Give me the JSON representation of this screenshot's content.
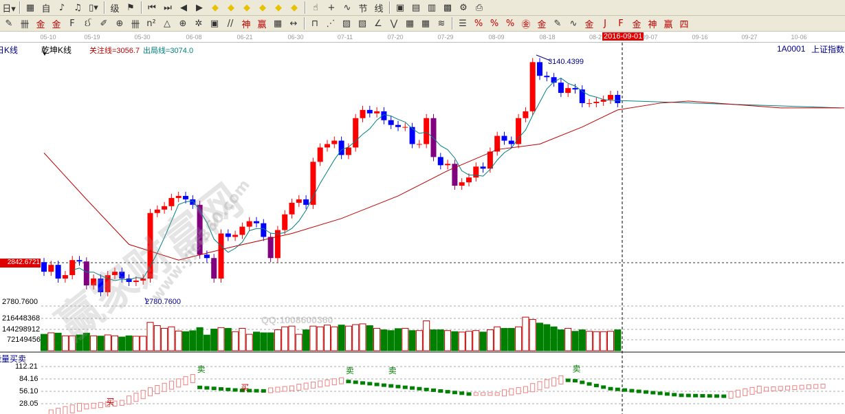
{
  "toolbar1": [
    {
      "name": "period-dropdown",
      "glyph": "日▾"
    },
    {
      "name": "chart-icon",
      "glyph": "▦"
    },
    {
      "name": "self-select-icon",
      "glyph": "自"
    },
    {
      "name": "indicator3-icon",
      "glyph": "♪"
    },
    {
      "name": "indicator9-icon",
      "glyph": "♫"
    },
    {
      "name": "candle-type-dropdown",
      "glyph": "▯▾"
    },
    {
      "name": "limit-icon",
      "glyph": "级"
    },
    {
      "name": "flag-icon",
      "glyph": "⚑"
    },
    {
      "name": "first-icon",
      "glyph": "⏮"
    },
    {
      "name": "last-icon",
      "glyph": "⏭"
    },
    {
      "name": "left-icon",
      "glyph": "◀"
    },
    {
      "name": "right-icon",
      "glyph": "▶"
    },
    {
      "name": "move-left-icon",
      "glyph": "◆"
    },
    {
      "name": "move-right-icon",
      "glyph": "◆"
    },
    {
      "name": "zoom-in-icon",
      "glyph": "◆"
    },
    {
      "name": "zoom-out-icon",
      "glyph": "◆"
    },
    {
      "name": "expand-icon",
      "glyph": "◆"
    },
    {
      "name": "shrink-icon",
      "glyph": "◆"
    },
    {
      "name": "hand-icon",
      "glyph": "☝"
    },
    {
      "name": "crosshair-icon",
      "glyph": "+"
    },
    {
      "name": "line-icon",
      "glyph": "∿"
    },
    {
      "name": "section-icon",
      "glyph": "节"
    },
    {
      "name": "draw-line-icon",
      "glyph": "线"
    },
    {
      "name": "calendar-icon",
      "glyph": "▣"
    },
    {
      "name": "calculator-icon",
      "glyph": "▤"
    },
    {
      "name": "notes-icon",
      "glyph": "▥"
    },
    {
      "name": "save-icon",
      "glyph": "▩"
    },
    {
      "name": "network-icon",
      "glyph": "⚙"
    },
    {
      "name": "print-icon",
      "glyph": "⎙"
    }
  ],
  "toolbar2": [
    {
      "name": "pen-icon",
      "glyph": "✎"
    },
    {
      "name": "parallel-icon",
      "glyph": "卌"
    },
    {
      "name": "gold-icon",
      "glyph": "金"
    },
    {
      "name": "gold2-icon",
      "glyph": "金"
    },
    {
      "name": "fib-icon",
      "glyph": "F"
    },
    {
      "name": "spiral-icon",
      "glyph": "ઈ"
    },
    {
      "name": "marker-icon",
      "glyph": "✐"
    },
    {
      "name": "circle-icon",
      "glyph": "⊕"
    },
    {
      "name": "cycle-icon",
      "glyph": "卌"
    },
    {
      "name": "n2-icon",
      "glyph": "n²"
    },
    {
      "name": "triangle-icon",
      "glyph": "△"
    },
    {
      "name": "target-icon",
      "glyph": "⊕"
    },
    {
      "name": "star-icon",
      "glyph": "✲"
    },
    {
      "name": "box-icon",
      "glyph": "▣"
    },
    {
      "name": "angle-icon",
      "glyph": "//"
    },
    {
      "name": "shen-icon",
      "glyph": "神"
    },
    {
      "name": "win-icon",
      "glyph": "赢"
    },
    {
      "name": "grid-icon",
      "glyph": "▦"
    },
    {
      "name": "width-icon",
      "glyph": "↔"
    },
    {
      "name": "rect-icon",
      "glyph": "⊓"
    },
    {
      "name": "fan-icon",
      "glyph": "⋰"
    },
    {
      "name": "gann-icon",
      "glyph": "▨"
    },
    {
      "name": "gann2-icon",
      "glyph": "▧"
    },
    {
      "name": "speed-icon",
      "glyph": "∠"
    },
    {
      "name": "wave-icon",
      "glyph": "⋁"
    },
    {
      "name": "grid2-icon",
      "glyph": "▦"
    },
    {
      "name": "grid3-icon",
      "glyph": "▦"
    },
    {
      "name": "lines-icon",
      "glyph": "≋"
    },
    {
      "name": "table-icon",
      "glyph": "☰"
    },
    {
      "name": "percent-line-icon",
      "glyph": "%"
    },
    {
      "name": "percent-icon",
      "glyph": "%"
    },
    {
      "name": "percent2-icon",
      "glyph": "%"
    },
    {
      "name": "gold-circle-icon",
      "glyph": "㊎"
    },
    {
      "name": "gold-line-icon",
      "glyph": "金"
    },
    {
      "name": "pen2-icon",
      "glyph": "✎"
    },
    {
      "name": "wave2-icon",
      "glyph": "∿"
    },
    {
      "name": "gold3-icon",
      "glyph": "金"
    },
    {
      "name": "j-line-icon",
      "glyph": "J"
    },
    {
      "name": "f-line-icon",
      "glyph": "F"
    },
    {
      "name": "gold4-icon",
      "glyph": "金"
    },
    {
      "name": "shen2-icon",
      "glyph": "神"
    },
    {
      "name": "win2-icon",
      "glyph": "赢"
    },
    {
      "name": "four-icon",
      "glyph": "四"
    }
  ],
  "date_axis": [
    "05-10",
    "05-19",
    "05-30",
    "06-08",
    "06-21",
    "06-30",
    "07-11",
    "07-20",
    "07-29",
    "08-09",
    "08-18",
    "08-2",
    "09-07",
    "09-16",
    "09-27",
    "10-06"
  ],
  "current_date": "2016-09-01",
  "header": {
    "left_label": "日K线",
    "chart_name": "乾坤K线",
    "focus_line": "关注线=3056.7",
    "exit_line": "出局线=3074.0",
    "symbol": "1A0001",
    "symbol_name": "上证指数"
  },
  "price_axis": {
    "high_label": "3140.4399",
    "low_label": "2780.7600",
    "low_axis": "2780.7600",
    "cursor_price": "2842.6721"
  },
  "volume_axis": [
    "216448368",
    "144298912",
    "72149456"
  ],
  "indicator": {
    "title": "能量买卖",
    "axis": [
      "112.21",
      "84.16",
      "56.10",
      "28.05"
    ],
    "buy_label": "买",
    "sell_label": "卖"
  },
  "watermark": {
    "text": "赢家财富网",
    "url": "www.yjcf360.com",
    "qq": "QQ:1008600360"
  },
  "colors": {
    "up": "#ff0000",
    "down": "#0000ff",
    "big_down": "#800080",
    "vol_up": "#c00000",
    "vol_down": "#008000",
    "ma_short": "#008080",
    "ma_long": "#c00000",
    "ind_up": "#f08080",
    "ind_down": "#008000"
  },
  "chart_data": {
    "type": "candlestick",
    "ylim": [
      2780.76,
      3140.44
    ],
    "open": [
      2840,
      2826,
      2836,
      2816,
      2821,
      2843,
      2841,
      2806,
      2816,
      2796,
      2821,
      2826,
      2816,
      2811,
      2813,
      2816,
      2912,
      2917,
      2922,
      2934,
      2937,
      2932,
      2924,
      2851,
      2846,
      2816,
      2882,
      2877,
      2880,
      2892,
      2900,
      2897,
      2877,
      2846,
      2887,
      2910,
      2927,
      2932,
      2924,
      2987,
      3008,
      3013,
      3018,
      2997,
      3008,
      3051,
      3063,
      3058,
      3061,
      3048,
      3041,
      3038,
      3038,
      3013,
      3013,
      3051,
      2994,
      2982,
      2984,
      2952,
      2957,
      2964,
      2980,
      2977,
      3002,
      3025,
      3018,
      3013,
      3051,
      3061,
      3133,
      3113,
      3111,
      3103,
      3088,
      3095,
      3093,
      3073,
      3073,
      3075,
      3078,
      3085
    ],
    "close": [
      2826,
      2836,
      2816,
      2821,
      2843,
      2841,
      2806,
      2816,
      2796,
      2821,
      2826,
      2816,
      2811,
      2813,
      2816,
      2912,
      2917,
      2922,
      2934,
      2937,
      2932,
      2924,
      2851,
      2846,
      2816,
      2882,
      2877,
      2880,
      2892,
      2900,
      2897,
      2877,
      2846,
      2887,
      2910,
      2927,
      2932,
      2924,
      2987,
      3008,
      3013,
      3018,
      2997,
      3008,
      3051,
      3063,
      3058,
      3061,
      3048,
      3041,
      3038,
      3038,
      3013,
      3013,
      3051,
      2994,
      2982,
      2984,
      2952,
      2957,
      2964,
      2980,
      2977,
      3002,
      3025,
      3018,
      3013,
      3051,
      3061,
      3133,
      3113,
      3111,
      3103,
      3088,
      3095,
      3093,
      3073,
      3073,
      3075,
      3078,
      3085,
      3073
    ],
    "volume": [
      110000000,
      120000000,
      118000000,
      100000000,
      100000000,
      106000000,
      118000000,
      100000000,
      98000000,
      106000000,
      100000000,
      92000000,
      100000000,
      97000000,
      97000000,
      190000000,
      168000000,
      150000000,
      160000000,
      132000000,
      128000000,
      134000000,
      155000000,
      105000000,
      145000000,
      155000000,
      150000000,
      128000000,
      150000000,
      110000000,
      125000000,
      120000000,
      120000000,
      140000000,
      160000000,
      165000000,
      110000000,
      140000000,
      165000000,
      160000000,
      172000000,
      160000000,
      172000000,
      165000000,
      175000000,
      180000000,
      168000000,
      150000000,
      140000000,
      135000000,
      148000000,
      150000000,
      135000000,
      135000000,
      200000000,
      140000000,
      140000000,
      135000000,
      128000000,
      125000000,
      130000000,
      135000000,
      125000000,
      140000000,
      160000000,
      150000000,
      150000000,
      160000000,
      225000000,
      210000000,
      185000000,
      175000000,
      160000000,
      140000000,
      150000000,
      130000000,
      140000000,
      130000000,
      128000000,
      128000000,
      130000000,
      140000000
    ],
    "volume_max": 216448368,
    "ma_long": [
      [
        0,
        3000
      ],
      [
        6,
        2932
      ],
      [
        12,
        2866
      ],
      [
        19,
        2843
      ],
      [
        26,
        2861
      ],
      [
        35,
        2882
      ],
      [
        42,
        2904
      ],
      [
        50,
        2937
      ],
      [
        57,
        2974
      ],
      [
        64,
        3005
      ],
      [
        70,
        3013
      ],
      [
        76,
        3038
      ],
      [
        81,
        3063
      ],
      [
        87,
        3073
      ],
      [
        91,
        3076
      ],
      [
        104,
        3066
      ],
      [
        113,
        3066
      ]
    ],
    "ma_short_extension": 3066,
    "indicator_series": [
      [
        1,
        5
      ],
      [
        5,
        20
      ],
      [
        11,
        30
      ],
      [
        15,
        55
      ],
      [
        21,
        85
      ],
      [
        22,
        65
      ],
      [
        28,
        58
      ],
      [
        31,
        57
      ],
      [
        35,
        63
      ],
      [
        42,
        80
      ],
      [
        48,
        70
      ],
      [
        53,
        62
      ],
      [
        60,
        50
      ],
      [
        64,
        50
      ],
      [
        68,
        60
      ],
      [
        73,
        82
      ],
      [
        75,
        80
      ],
      [
        80,
        62
      ],
      [
        90,
        47
      ],
      [
        96,
        45
      ],
      [
        101,
        60
      ],
      [
        110,
        68
      ]
    ],
    "indicator_buy_at": [
      [
        8,
        38
      ],
      [
        27,
        70
      ]
    ],
    "indicator_sell_at": [
      [
        22,
        92
      ],
      [
        43,
        89
      ],
      [
        49,
        89
      ],
      [
        75,
        93
      ]
    ]
  }
}
